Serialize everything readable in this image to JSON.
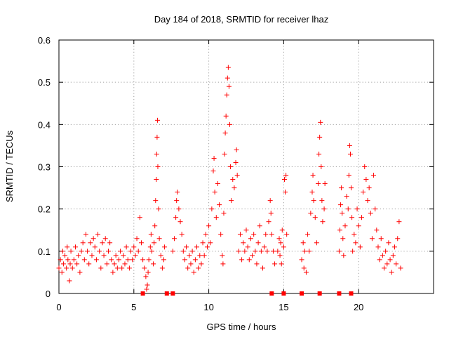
{
  "chart_data": {
    "type": "scatter",
    "title": "Day 184 of 2018, SRMTID for receiver lhaz",
    "xlabel": "GPS time / hours",
    "ylabel": "SRMTID / TECUs",
    "xlim": [
      0,
      25
    ],
    "ylim": [
      0,
      0.6
    ],
    "x_ticks": [
      {
        "value": 0,
        "label": "0"
      },
      {
        "value": 5,
        "label": "5"
      },
      {
        "value": 10,
        "label": "10"
      },
      {
        "value": 15,
        "label": "15"
      },
      {
        "value": 20,
        "label": "20"
      }
    ],
    "y_ticks": [
      {
        "value": 0,
        "label": "0"
      },
      {
        "value": 0.1,
        "label": "0.1"
      },
      {
        "value": 0.2,
        "label": "0.2"
      },
      {
        "value": 0.3,
        "label": "0.3"
      },
      {
        "value": 0.4,
        "label": "0.4"
      },
      {
        "value": 0.5,
        "label": "0.5"
      },
      {
        "value": 0.6,
        "label": "0.6"
      }
    ],
    "grid": true,
    "marker": "+",
    "series": [
      {
        "name": "SRMTID",
        "color": "#ff0000",
        "points": [
          [
            0.0,
            0.06
          ],
          [
            0.1,
            0.08
          ],
          [
            0.2,
            0.05
          ],
          [
            0.25,
            0.1
          ],
          [
            0.3,
            0.07
          ],
          [
            0.4,
            0.09
          ],
          [
            0.5,
            0.06
          ],
          [
            0.55,
            0.11
          ],
          [
            0.6,
            0.08
          ],
          [
            0.7,
            0.03
          ],
          [
            0.75,
            0.07
          ],
          [
            0.8,
            0.1
          ],
          [
            0.9,
            0.06
          ],
          [
            1.0,
            0.08
          ],
          [
            1.1,
            0.11
          ],
          [
            1.2,
            0.07
          ],
          [
            1.3,
            0.09
          ],
          [
            1.4,
            0.05
          ],
          [
            1.5,
            0.1
          ],
          [
            1.6,
            0.12
          ],
          [
            1.7,
            0.08
          ],
          [
            1.8,
            0.14
          ],
          [
            1.9,
            0.1
          ],
          [
            2.0,
            0.07
          ],
          [
            2.1,
            0.12
          ],
          [
            2.2,
            0.09
          ],
          [
            2.3,
            0.13
          ],
          [
            2.4,
            0.11
          ],
          [
            2.5,
            0.08
          ],
          [
            2.6,
            0.14
          ],
          [
            2.7,
            0.1
          ],
          [
            2.8,
            0.06
          ],
          [
            2.9,
            0.12
          ],
          [
            3.0,
            0.09
          ],
          [
            3.1,
            0.13
          ],
          [
            3.2,
            0.07
          ],
          [
            3.3,
            0.1
          ],
          [
            3.4,
            0.12
          ],
          [
            3.5,
            0.08
          ],
          [
            3.6,
            0.05
          ],
          [
            3.7,
            0.07
          ],
          [
            3.8,
            0.09
          ],
          [
            3.9,
            0.06
          ],
          [
            4.0,
            0.08
          ],
          [
            4.1,
            0.1
          ],
          [
            4.2,
            0.06
          ],
          [
            4.3,
            0.09
          ],
          [
            4.4,
            0.07
          ],
          [
            4.5,
            0.11
          ],
          [
            4.6,
            0.08
          ],
          [
            4.7,
            0.06
          ],
          [
            4.8,
            0.1
          ],
          [
            4.9,
            0.08
          ],
          [
            5.0,
            0.11
          ],
          [
            5.1,
            0.09
          ],
          [
            5.2,
            0.13
          ],
          [
            5.3,
            0.1
          ],
          [
            5.4,
            0.18
          ],
          [
            5.5,
            0.12
          ],
          [
            5.6,
            0.08
          ],
          [
            5.7,
            0.06
          ],
          [
            5.8,
            0.04
          ],
          [
            5.85,
            0.01
          ],
          [
            5.9,
            0.02
          ],
          [
            5.95,
            0.05
          ],
          [
            6.0,
            0.08
          ],
          [
            6.1,
            0.11
          ],
          [
            6.15,
            0.14
          ],
          [
            6.2,
            0.1
          ],
          [
            6.3,
            0.07
          ],
          [
            6.35,
            0.12
          ],
          [
            6.4,
            0.16
          ],
          [
            6.45,
            0.22
          ],
          [
            6.5,
            0.27
          ],
          [
            6.52,
            0.33
          ],
          [
            6.55,
            0.37
          ],
          [
            6.58,
            0.41
          ],
          [
            6.6,
            0.3
          ],
          [
            6.65,
            0.2
          ],
          [
            6.7,
            0.13
          ],
          [
            6.8,
            0.09
          ],
          [
            6.9,
            0.06
          ],
          [
            7.0,
            0.08
          ],
          [
            7.05,
            0.11
          ],
          [
            7.6,
            0.1
          ],
          [
            7.7,
            0.13
          ],
          [
            7.8,
            0.18
          ],
          [
            7.85,
            0.22
          ],
          [
            7.9,
            0.24
          ],
          [
            8.0,
            0.2
          ],
          [
            8.1,
            0.17
          ],
          [
            8.2,
            0.14
          ],
          [
            8.3,
            0.1
          ],
          [
            8.4,
            0.08
          ],
          [
            8.5,
            0.11
          ],
          [
            8.6,
            0.06
          ],
          [
            8.7,
            0.09
          ],
          [
            8.8,
            0.07
          ],
          [
            8.9,
            0.1
          ],
          [
            9.0,
            0.05
          ],
          [
            9.1,
            0.08
          ],
          [
            9.2,
            0.11
          ],
          [
            9.3,
            0.06
          ],
          [
            9.4,
            0.09
          ],
          [
            9.5,
            0.07
          ],
          [
            9.6,
            0.12
          ],
          [
            9.7,
            0.09
          ],
          [
            9.8,
            0.14
          ],
          [
            9.9,
            0.11
          ],
          [
            10.0,
            0.16
          ],
          [
            10.1,
            0.12
          ],
          [
            10.2,
            0.2
          ],
          [
            10.3,
            0.29
          ],
          [
            10.35,
            0.32
          ],
          [
            10.4,
            0.24
          ],
          [
            10.5,
            0.18
          ],
          [
            10.6,
            0.26
          ],
          [
            10.7,
            0.21
          ],
          [
            10.8,
            0.14
          ],
          [
            10.9,
            0.09
          ],
          [
            10.95,
            0.07
          ],
          [
            11.0,
            0.19
          ],
          [
            11.05,
            0.33
          ],
          [
            11.1,
            0.38
          ],
          [
            11.15,
            0.42
          ],
          [
            11.2,
            0.47
          ],
          [
            11.25,
            0.51
          ],
          [
            11.3,
            0.535
          ],
          [
            11.35,
            0.49
          ],
          [
            11.4,
            0.4
          ],
          [
            11.45,
            0.3
          ],
          [
            11.5,
            0.22
          ],
          [
            11.6,
            0.27
          ],
          [
            11.7,
            0.25
          ],
          [
            11.8,
            0.31
          ],
          [
            11.85,
            0.34
          ],
          [
            11.9,
            0.28
          ],
          [
            12.0,
            0.1
          ],
          [
            12.1,
            0.14
          ],
          [
            12.2,
            0.08
          ],
          [
            12.3,
            0.12
          ],
          [
            12.4,
            0.1
          ],
          [
            12.5,
            0.15
          ],
          [
            12.6,
            0.11
          ],
          [
            12.7,
            0.08
          ],
          [
            12.8,
            0.13
          ],
          [
            12.9,
            0.09
          ],
          [
            13.0,
            0.14
          ],
          [
            13.1,
            0.1
          ],
          [
            13.2,
            0.07
          ],
          [
            13.3,
            0.12
          ],
          [
            13.4,
            0.16
          ],
          [
            13.5,
            0.1
          ],
          [
            13.6,
            0.06
          ],
          [
            13.7,
            0.11
          ],
          [
            13.8,
            0.14
          ],
          [
            13.9,
            0.1
          ],
          [
            14.0,
            0.17
          ],
          [
            14.1,
            0.22
          ],
          [
            14.15,
            0.19
          ],
          [
            14.2,
            0.14
          ],
          [
            14.3,
            0.1
          ],
          [
            14.4,
            0.07
          ],
          [
            14.6,
            0.1
          ],
          [
            14.7,
            0.13
          ],
          [
            14.75,
            0.09
          ],
          [
            14.8,
            0.12
          ],
          [
            14.85,
            0.07
          ],
          [
            14.9,
            0.15
          ],
          [
            15.0,
            0.11
          ],
          [
            15.05,
            0.27
          ],
          [
            15.1,
            0.24
          ],
          [
            15.15,
            0.28
          ],
          [
            15.2,
            0.14
          ],
          [
            16.2,
            0.08
          ],
          [
            16.3,
            0.12
          ],
          [
            16.35,
            0.06
          ],
          [
            16.4,
            0.1
          ],
          [
            16.5,
            0.05
          ],
          [
            16.6,
            0.14
          ],
          [
            16.7,
            0.1
          ],
          [
            16.8,
            0.19
          ],
          [
            16.9,
            0.24
          ],
          [
            16.95,
            0.28
          ],
          [
            17.0,
            0.22
          ],
          [
            17.1,
            0.18
          ],
          [
            17.2,
            0.12
          ],
          [
            17.3,
            0.26
          ],
          [
            17.35,
            0.33
          ],
          [
            17.4,
            0.37
          ],
          [
            17.45,
            0.405
          ],
          [
            17.5,
            0.3
          ],
          [
            17.55,
            0.22
          ],
          [
            17.6,
            0.17
          ],
          [
            17.7,
            0.2
          ],
          [
            17.75,
            0.26
          ],
          [
            18.7,
            0.1
          ],
          [
            18.75,
            0.15
          ],
          [
            18.8,
            0.21
          ],
          [
            18.85,
            0.25
          ],
          [
            18.9,
            0.19
          ],
          [
            18.95,
            0.13
          ],
          [
            19.0,
            0.09
          ],
          [
            19.1,
            0.16
          ],
          [
            19.2,
            0.23
          ],
          [
            19.3,
            0.2
          ],
          [
            19.35,
            0.28
          ],
          [
            19.4,
            0.35
          ],
          [
            19.45,
            0.33
          ],
          [
            19.5,
            0.25
          ],
          [
            19.55,
            0.18
          ],
          [
            19.6,
            0.1
          ],
          [
            19.7,
            0.14
          ],
          [
            19.8,
            0.12
          ],
          [
            19.9,
            0.2
          ],
          [
            20.0,
            0.16
          ],
          [
            20.1,
            0.11
          ],
          [
            20.2,
            0.18
          ],
          [
            20.3,
            0.24
          ],
          [
            20.4,
            0.3
          ],
          [
            20.5,
            0.27
          ],
          [
            20.6,
            0.22
          ],
          [
            20.7,
            0.25
          ],
          [
            20.8,
            0.19
          ],
          [
            20.9,
            0.13
          ],
          [
            21.0,
            0.28
          ],
          [
            21.1,
            0.2
          ],
          [
            21.2,
            0.15
          ],
          [
            21.3,
            0.11
          ],
          [
            21.4,
            0.08
          ],
          [
            21.5,
            0.13
          ],
          [
            21.6,
            0.09
          ],
          [
            21.7,
            0.06
          ],
          [
            21.8,
            0.1
          ],
          [
            21.9,
            0.07
          ],
          [
            22.0,
            0.12
          ],
          [
            22.1,
            0.08
          ],
          [
            22.2,
            0.05
          ],
          [
            22.3,
            0.09
          ],
          [
            22.4,
            0.11
          ],
          [
            22.5,
            0.07
          ],
          [
            22.6,
            0.13
          ],
          [
            22.7,
            0.17
          ],
          [
            22.8,
            0.06
          ]
        ]
      }
    ],
    "gap_markers": [
      5.6,
      7.2,
      7.6,
      14.2,
      15.0,
      16.2,
      17.4,
      18.7,
      19.5
    ]
  }
}
